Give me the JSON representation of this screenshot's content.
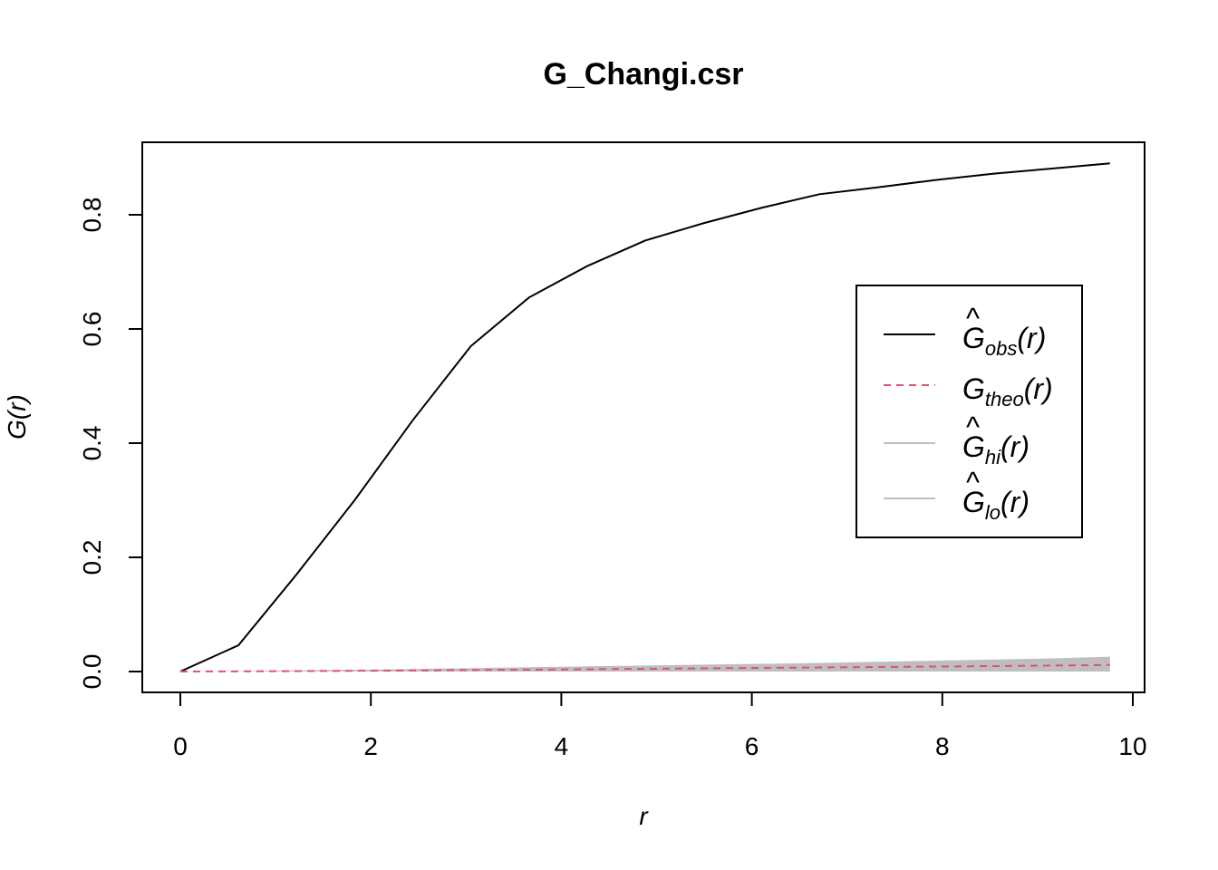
{
  "chart_data": {
    "type": "line",
    "title": "G_Changi.csr",
    "xlabel": "r",
    "ylabel": "G(r)",
    "xlim": [
      0,
      10
    ],
    "ylim": [
      0,
      0.9
    ],
    "x_ticks": [
      0,
      2,
      4,
      6,
      8,
      10
    ],
    "y_ticks": [
      "0.0",
      "0.2",
      "0.4",
      "0.6",
      "0.8"
    ],
    "x_tick_labels": [
      "0",
      "2",
      "4",
      "6",
      "8",
      "10"
    ],
    "legend_position": "right",
    "envelope": {
      "x": [
        0,
        0.61,
        1.22,
        1.83,
        2.44,
        3.05,
        3.66,
        4.27,
        4.88,
        5.49,
        6.1,
        6.71,
        7.32,
        7.93,
        8.54,
        9.15,
        9.76
      ],
      "hi": [
        0,
        0.0007,
        0.002,
        0.003,
        0.0045,
        0.006,
        0.0075,
        0.009,
        0.0105,
        0.012,
        0.0135,
        0.015,
        0.017,
        0.019,
        0.021,
        0.023,
        0.026
      ],
      "lo": [
        0,
        0,
        0,
        0,
        0,
        0,
        0,
        0,
        0,
        0,
        0,
        0,
        0,
        0,
        0,
        0,
        0
      ],
      "color": "#bebebe"
    },
    "series": [
      {
        "name": "Ĝobs(r)",
        "style": "solid",
        "color": "#000000",
        "x": [
          0,
          0.61,
          1.22,
          1.83,
          2.44,
          3.05,
          3.66,
          4.27,
          4.88,
          5.49,
          6.1,
          6.71,
          7.32,
          7.93,
          8.54,
          9.15,
          9.76
        ],
        "values": [
          0,
          0.046,
          0.17,
          0.3,
          0.44,
          0.57,
          0.655,
          0.71,
          0.755,
          0.785,
          0.812,
          0.836,
          0.848,
          0.861,
          0.872,
          0.881,
          0.89
        ]
      },
      {
        "name": "Gtheo(r)",
        "style": "dashed",
        "color": "#DF536B",
        "x": [
          0,
          0.61,
          1.22,
          1.83,
          2.44,
          3.05,
          3.66,
          4.27,
          4.88,
          5.49,
          6.1,
          6.71,
          7.32,
          7.93,
          8.54,
          9.15,
          9.76
        ],
        "values": [
          0,
          0.0003,
          0.0008,
          0.0013,
          0.0018,
          0.0025,
          0.0032,
          0.004,
          0.0048,
          0.0055,
          0.0063,
          0.0071,
          0.008,
          0.0088,
          0.0096,
          0.0105,
          0.0115
        ]
      }
    ],
    "legend": [
      {
        "main": "G",
        "sub": "obs",
        "suffix": "(r)",
        "hat": true,
        "color": "#000000",
        "style": "solid"
      },
      {
        "main": "G",
        "sub": "theo",
        "suffix": "(r)",
        "hat": false,
        "color": "#DF536B",
        "style": "dashed"
      },
      {
        "main": "G",
        "sub": "hi",
        "suffix": "(r)",
        "hat": true,
        "color": "#bebebe",
        "style": "solid"
      },
      {
        "main": "G",
        "sub": "lo",
        "suffix": "(r)",
        "hat": true,
        "color": "#bebebe",
        "style": "solid"
      }
    ]
  }
}
